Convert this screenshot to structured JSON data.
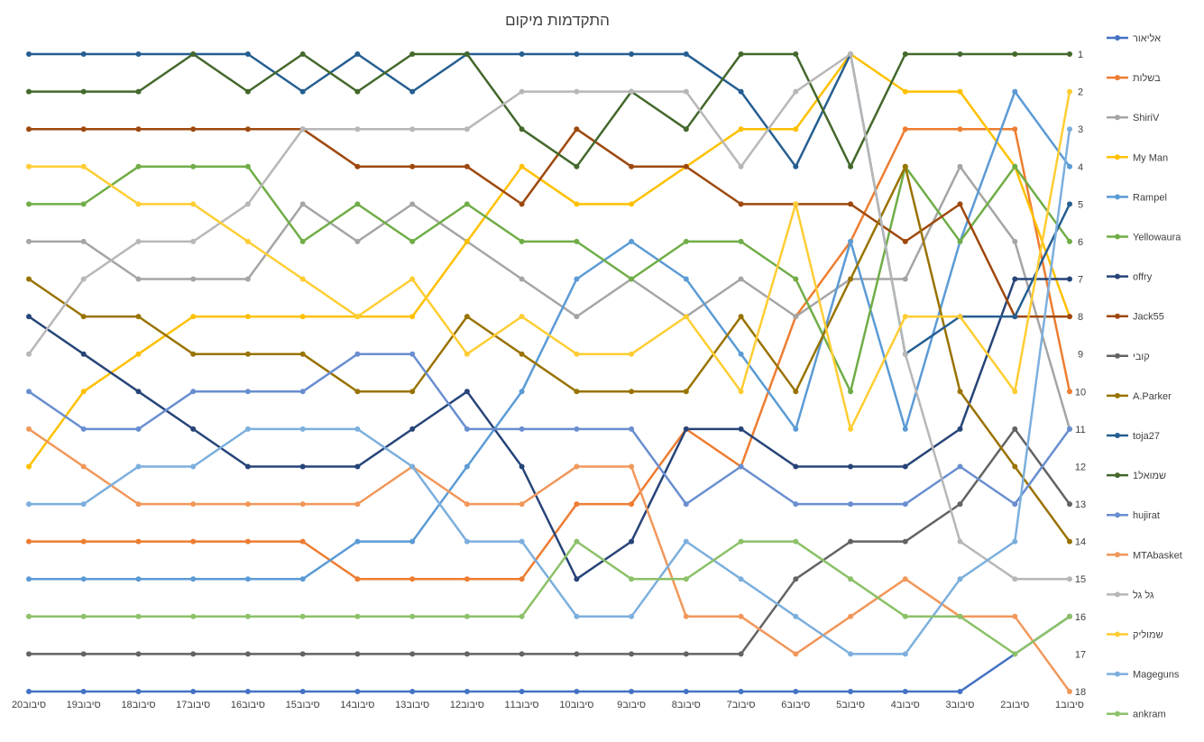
{
  "chart_data": {
    "type": "line",
    "title": "התקדמות מיקום",
    "xlabel": "",
    "ylabel": "",
    "x": [
      "סיבוב20",
      "סיבוב19",
      "סיבוב18",
      "סיבוב17",
      "סיבוב16",
      "סיבוב15",
      "סיבוב14",
      "סיבוב13",
      "סיבוב12",
      "סיבוב11",
      "סיבוב10",
      "סיבוב9",
      "סיבוב8",
      "סיבוב7",
      "סיבוב6",
      "סיבוב5",
      "סיבוב4",
      "סיבוב3",
      "סיבוב2",
      "סיבוב1"
    ],
    "y_ticks": [
      "1",
      "2",
      "3",
      "4",
      "5",
      "6",
      "7",
      "8",
      "9",
      "10",
      "11",
      "12",
      "13",
      "14",
      "15",
      "16",
      "17",
      "18"
    ],
    "ylim": [
      1,
      18
    ],
    "y_axis_position": "right",
    "y_reversed": true,
    "grid": false,
    "legend_position": "right",
    "series": [
      {
        "name": "אליאור",
        "color": "#4472c4",
        "values": [
          18,
          18,
          18,
          18,
          18,
          18,
          18,
          18,
          18,
          18,
          18,
          18,
          18,
          18,
          18,
          18,
          18,
          18,
          17,
          16
        ]
      },
      {
        "name": "בשלות",
        "color": "#ed7d31",
        "values": [
          14,
          14,
          14,
          14,
          14,
          14,
          15,
          15,
          15,
          15,
          13,
          13,
          11,
          12,
          8,
          6,
          3,
          3,
          3,
          10
        ]
      },
      {
        "name": "ShiriV",
        "color": "#a5a5a5",
        "values": [
          6,
          6,
          7,
          7,
          7,
          5,
          6,
          5,
          6,
          7,
          8,
          7,
          8,
          7,
          8,
          7,
          7,
          4,
          6,
          11
        ]
      },
      {
        "name": "My Man",
        "color": "#ffc000",
        "values": [
          12,
          10,
          9,
          8,
          8,
          8,
          8,
          8,
          6,
          4,
          5,
          5,
          4,
          3,
          3,
          1,
          2,
          2,
          4,
          8
        ]
      },
      {
        "name": "Rampel",
        "color": "#5b9bd5",
        "values": [
          15,
          15,
          15,
          15,
          15,
          15,
          14,
          14,
          12,
          10,
          7,
          6,
          7,
          9,
          11,
          6,
          11,
          6,
          2,
          4
        ]
      },
      {
        "name": "Yellowaura",
        "color": "#70ad47",
        "values": [
          5,
          5,
          4,
          4,
          4,
          6,
          5,
          6,
          5,
          6,
          6,
          7,
          6,
          6,
          7,
          10,
          4,
          6,
          4,
          6
        ]
      },
      {
        "name": "offry",
        "color": "#264478",
        "values": [
          8,
          9,
          10,
          11,
          12,
          12,
          12,
          11,
          10,
          12,
          15,
          14,
          11,
          11,
          12,
          12,
          12,
          11,
          7,
          7
        ]
      },
      {
        "name": "Jack55",
        "color": "#9e480e",
        "values": [
          3,
          3,
          3,
          3,
          3,
          3,
          4,
          4,
          4,
          5,
          3,
          4,
          4,
          5,
          5,
          5,
          6,
          5,
          8,
          8
        ]
      },
      {
        "name": "קובי",
        "color": "#636363",
        "values": [
          17,
          17,
          17,
          17,
          17,
          17,
          17,
          17,
          17,
          17,
          17,
          17,
          17,
          17,
          15,
          14,
          14,
          13,
          11,
          13
        ]
      },
      {
        "name": "A.Parker",
        "color": "#997300",
        "values": [
          7,
          8,
          8,
          9,
          9,
          9,
          10,
          10,
          8,
          9,
          10,
          10,
          10,
          8,
          10,
          7,
          4,
          10,
          12,
          14
        ]
      },
      {
        "name": "toja27",
        "color": "#255e91",
        "values": [
          1,
          1,
          1,
          1,
          1,
          2,
          1,
          2,
          1,
          1,
          1,
          1,
          1,
          2,
          4,
          1,
          9,
          8,
          8,
          5
        ]
      },
      {
        "name": "שמואל1",
        "color": "#43682b",
        "values": [
          2,
          2,
          2,
          1,
          2,
          1,
          2,
          1,
          1,
          3,
          4,
          2,
          3,
          1,
          1,
          4,
          1,
          1,
          1,
          1
        ]
      },
      {
        "name": "hujirat",
        "color": "#698ed0",
        "values": [
          10,
          11,
          11,
          10,
          10,
          10,
          9,
          9,
          11,
          11,
          11,
          11,
          13,
          12,
          13,
          13,
          13,
          12,
          13,
          11
        ]
      },
      {
        "name": "MTAbasket",
        "color": "#f1975a",
        "values": [
          11,
          12,
          13,
          13,
          13,
          13,
          13,
          12,
          13,
          13,
          12,
          12,
          16,
          16,
          17,
          16,
          15,
          16,
          16,
          18
        ]
      },
      {
        "name": "גל גל",
        "color": "#b7b7b7",
        "values": [
          9,
          7,
          6,
          6,
          5,
          3,
          3,
          3,
          3,
          2,
          2,
          2,
          2,
          4,
          2,
          1,
          9,
          14,
          15,
          15
        ]
      },
      {
        "name": "שמוליק",
        "color": "#ffcd33",
        "values": [
          4,
          4,
          5,
          5,
          6,
          7,
          8,
          7,
          9,
          8,
          9,
          9,
          8,
          10,
          5,
          11,
          8,
          8,
          10,
          2
        ]
      },
      {
        "name": "Mageguns",
        "color": "#7cafdd",
        "values": [
          13,
          13,
          12,
          12,
          11,
          11,
          11,
          12,
          14,
          14,
          16,
          16,
          14,
          15,
          16,
          17,
          17,
          15,
          14,
          3
        ]
      },
      {
        "name": "ankram",
        "color": "#8cc168",
        "values": [
          16,
          16,
          16,
          16,
          16,
          16,
          16,
          16,
          16,
          16,
          14,
          15,
          15,
          14,
          14,
          15,
          16,
          16,
          17,
          16
        ]
      }
    ]
  }
}
